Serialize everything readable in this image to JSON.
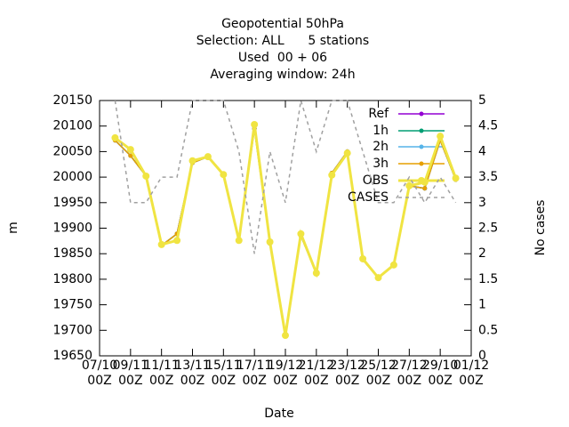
{
  "chart_data": {
    "type": "line",
    "title": [
      "Geopotential 50hPa",
      "Selection: ALL      5 stations",
      "Used  00 + 06",
      "Averaging window: 24h"
    ],
    "xlabel": "Date",
    "ylabel": "m",
    "y2label": "No cases",
    "x": [
      1,
      2,
      3,
      4,
      5,
      6,
      7,
      8,
      9,
      10,
      11,
      12,
      13,
      14,
      15,
      16,
      17,
      18,
      19,
      20,
      21,
      22,
      23
    ],
    "xlim": [
      0,
      24
    ],
    "xticks": [
      {
        "value": 0,
        "label": "07/10\n00Z"
      },
      {
        "value": 2,
        "label": "09/11\n00Z"
      },
      {
        "value": 4,
        "label": "11/11\n00Z"
      },
      {
        "value": 6,
        "label": "13/11\n00Z"
      },
      {
        "value": 8,
        "label": "15/11\n00Z"
      },
      {
        "value": 10,
        "label": "17/11\n00Z"
      },
      {
        "value": 12,
        "label": "19/12\n00Z"
      },
      {
        "value": 14,
        "label": "21/12\n00Z"
      },
      {
        "value": 16,
        "label": "23/12\n00Z"
      },
      {
        "value": 18,
        "label": "25/12\n00Z"
      },
      {
        "value": 20,
        "label": "27/12\n00Z"
      },
      {
        "value": 22,
        "label": "29/10\n00Z"
      },
      {
        "value": 24,
        "label": "01/12\n00Z"
      }
    ],
    "ylim": [
      19650,
      20150
    ],
    "yticks": [
      19650,
      19700,
      19750,
      19800,
      19850,
      19900,
      19950,
      20000,
      20050,
      20100,
      20150
    ],
    "y2lim": [
      0,
      5
    ],
    "y2ticks": [
      0,
      0.5,
      1,
      1.5,
      2,
      2.5,
      3,
      3.5,
      4,
      4.5,
      5
    ],
    "legend": "upper right",
    "series": [
      {
        "name": "Ref",
        "color": "#9400d3",
        "values": [
          20072,
          20042,
          20002,
          19866,
          19889,
          20028,
          20040,
          20005,
          19878,
          20095,
          19870,
          19690,
          19885,
          19812,
          20008,
          20050,
          19838,
          19803,
          19828,
          19983,
          19978,
          20072,
          19995
        ]
      },
      {
        "name": "1h",
        "color": "#009e73",
        "values": [
          20072,
          20042,
          20002,
          19866,
          19889,
          20028,
          20040,
          20005,
          19878,
          20095,
          19870,
          19690,
          19885,
          19812,
          20008,
          20050,
          19838,
          19803,
          19828,
          19983,
          19978,
          20072,
          19995
        ]
      },
      {
        "name": "2h",
        "color": "#56b4e9",
        "values": [
          20072,
          20042,
          20002,
          19866,
          19889,
          20028,
          20040,
          20005,
          19878,
          20095,
          19870,
          19690,
          19885,
          19812,
          20008,
          20050,
          19838,
          19803,
          19828,
          19983,
          19978,
          20072,
          19995
        ]
      },
      {
        "name": "3h",
        "color": "#e69f00",
        "values": [
          20072,
          20042,
          20002,
          19866,
          19889,
          20028,
          20040,
          20005,
          19878,
          20095,
          19870,
          19690,
          19885,
          19812,
          20008,
          20050,
          19838,
          19803,
          19828,
          19983,
          19978,
          20072,
          19995
        ]
      },
      {
        "name": "OBS",
        "color": "#f0e442",
        "values": [
          20077,
          20054,
          20002,
          19868,
          19876,
          20032,
          20040,
          20005,
          19876,
          20103,
          19873,
          19690,
          19889,
          19812,
          20004,
          20047,
          19840,
          19803,
          19828,
          19983,
          19990,
          20080,
          19998
        ]
      },
      {
        "name": "CASES",
        "color": "#a0a0a0",
        "axis": "y2",
        "values": [
          5,
          3,
          3,
          3.5,
          3.5,
          5,
          5,
          5,
          4,
          2,
          4,
          3,
          5,
          4,
          5,
          5,
          4,
          3,
          3,
          3.5,
          3,
          3.5,
          3
        ]
      }
    ]
  }
}
